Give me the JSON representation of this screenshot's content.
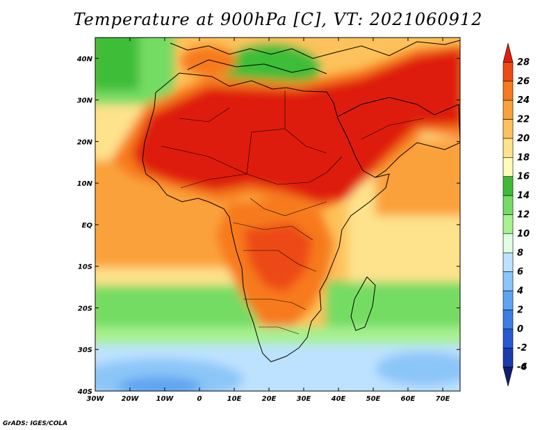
{
  "title": "Temperature at 900hPa [C], VT: 2021060912",
  "credit": "GrADS: IGES/COLA",
  "x_ticks": [
    "30W",
    "20W",
    "10W",
    "0",
    "10E",
    "20E",
    "30E",
    "40E",
    "50E",
    "60E",
    "70E"
  ],
  "y_ticks": [
    "40N",
    "30N",
    "20N",
    "10N",
    "EQ",
    "10S",
    "20S",
    "30S",
    "40S"
  ],
  "colorbar": {
    "labels": [
      "28",
      "26",
      "24",
      "22",
      "20",
      "18",
      "16",
      "14",
      "12",
      "10",
      "8",
      "6",
      "4",
      "2",
      "0",
      "-2",
      "-4",
      "-6"
    ],
    "colors": [
      "#de1e0e",
      "#ed4a14",
      "#f77a1c",
      "#fba13a",
      "#fdc25b",
      "#fee28c",
      "#fffbb8",
      "#3dbd37",
      "#74dc64",
      "#a6f190",
      "#e2fde2",
      "#bde2ff",
      "#8cc6f8",
      "#5ea4f0",
      "#3c7ee6",
      "#2659d2",
      "#1a3cae",
      "#0f1e70"
    ]
  },
  "map": {
    "lon_range": [
      -30,
      75
    ],
    "lat_range": [
      -40,
      45
    ],
    "variable": "Temperature at 900hPa",
    "units": "C"
  }
}
